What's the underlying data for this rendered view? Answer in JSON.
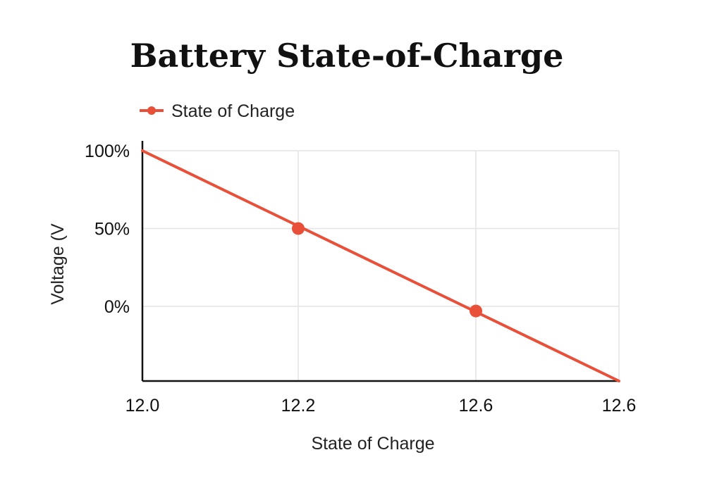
{
  "chart_data": {
    "type": "line",
    "title": "Battery State-of-Charge",
    "xlabel": "State of Charge",
    "ylabel": "Voltage (V",
    "x_tick_labels": [
      "12.0",
      "12.2",
      "12.6",
      "12.6"
    ],
    "y_tick_labels": [
      "100%",
      "50%",
      "0%"
    ],
    "series": [
      {
        "name": "State of Charge",
        "color": "#e8503a",
        "line_points": [
          {
            "x_tick": 0,
            "y": 100
          },
          {
            "x_tick": 3,
            "y": -48
          }
        ],
        "markers": [
          {
            "x_tick": 1,
            "y": 50
          },
          {
            "x_tick": 2,
            "y": -3
          }
        ]
      }
    ],
    "y_tick_values": [
      100,
      50,
      0
    ],
    "ylim": [
      -48,
      100
    ],
    "grid": true,
    "legend_position": "top-left"
  }
}
